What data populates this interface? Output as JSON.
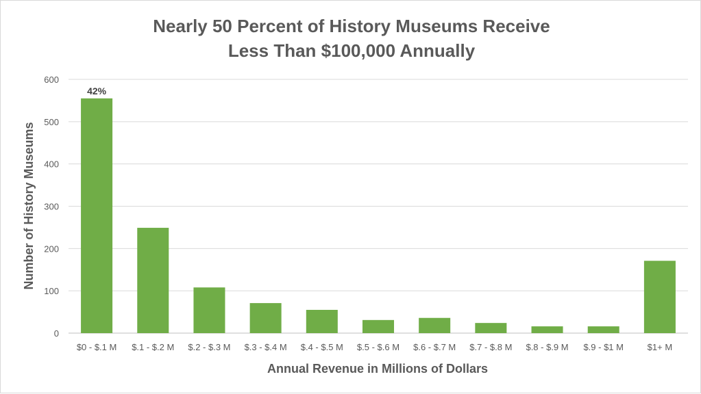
{
  "chart_data": {
    "type": "bar",
    "title": [
      "Nearly 50 Percent of History Museums Receive",
      "Less Than $100,000 Annually"
    ],
    "xlabel": "Annual Revenue in Millions of Dollars",
    "ylabel": "Number of History Museums",
    "ylim": [
      0,
      600
    ],
    "yticks": [
      0,
      100,
      200,
      300,
      400,
      500,
      600
    ],
    "grid": true,
    "categories": [
      "$0 - $.1 M",
      "$.1 - $.2 M",
      "$.2 - $.3 M",
      "$.3 - $.4 M",
      "$.4 - $.5 M",
      "$.5 - $.6 M",
      "$.6 - $.7 M",
      "$.7 - $.8 M",
      "$.8 - $.9 M",
      "$.9 - $1 M",
      "$1+ M"
    ],
    "values": [
      555,
      249,
      108,
      71,
      55,
      31,
      36,
      24,
      16,
      16,
      171
    ],
    "data_labels": {
      "0": "42%"
    },
    "bar_color": "#70ad47"
  }
}
